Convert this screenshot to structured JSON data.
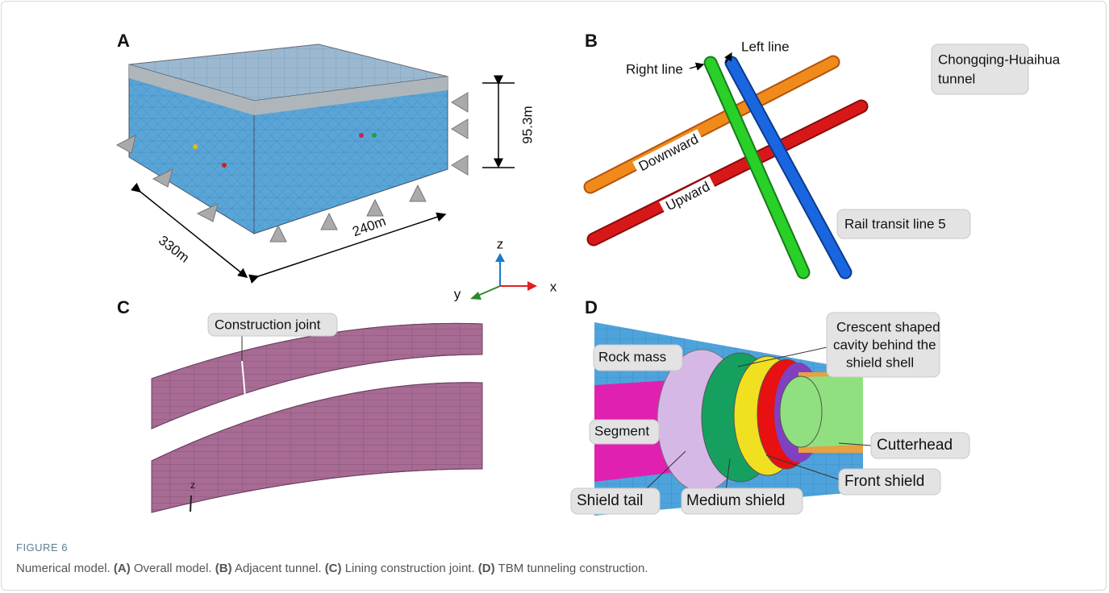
{
  "panels": {
    "A": {
      "label": "A",
      "height": "95.3m",
      "length": "330m",
      "width": "240m",
      "axes": {
        "z": "z",
        "y": "y",
        "x": "x"
      }
    },
    "B": {
      "label": "B",
      "right_line": "Right line",
      "left_line": "Left line",
      "tunnel": [
        "Chongqing-Huaihua",
        "tunnel"
      ],
      "downward": "Downward",
      "upward": "Upward",
      "rail": "Rail transit line 5"
    },
    "C": {
      "label": "C",
      "joint": "Construction joint",
      "axis": "z"
    },
    "D": {
      "label": "D",
      "rock": "Rock mass",
      "cavity": [
        "Crescent shaped",
        "cavity behind the",
        "shield shell"
      ],
      "segment": "Segment",
      "cutterhead": "Cutterhead",
      "front": "Front shield",
      "tail": "Shield tail",
      "medium": "Medium shield"
    }
  },
  "caption": {
    "figure": "FIGURE 6",
    "lead": "Numerical model.",
    "parts": [
      {
        "label": "(A)",
        "text": "Overall model."
      },
      {
        "label": "(B)",
        "text": "Adjacent tunnel."
      },
      {
        "label": "(C)",
        "text": "Lining construction joint."
      },
      {
        "label": "(D)",
        "text": "TBM tunneling construction."
      }
    ]
  }
}
